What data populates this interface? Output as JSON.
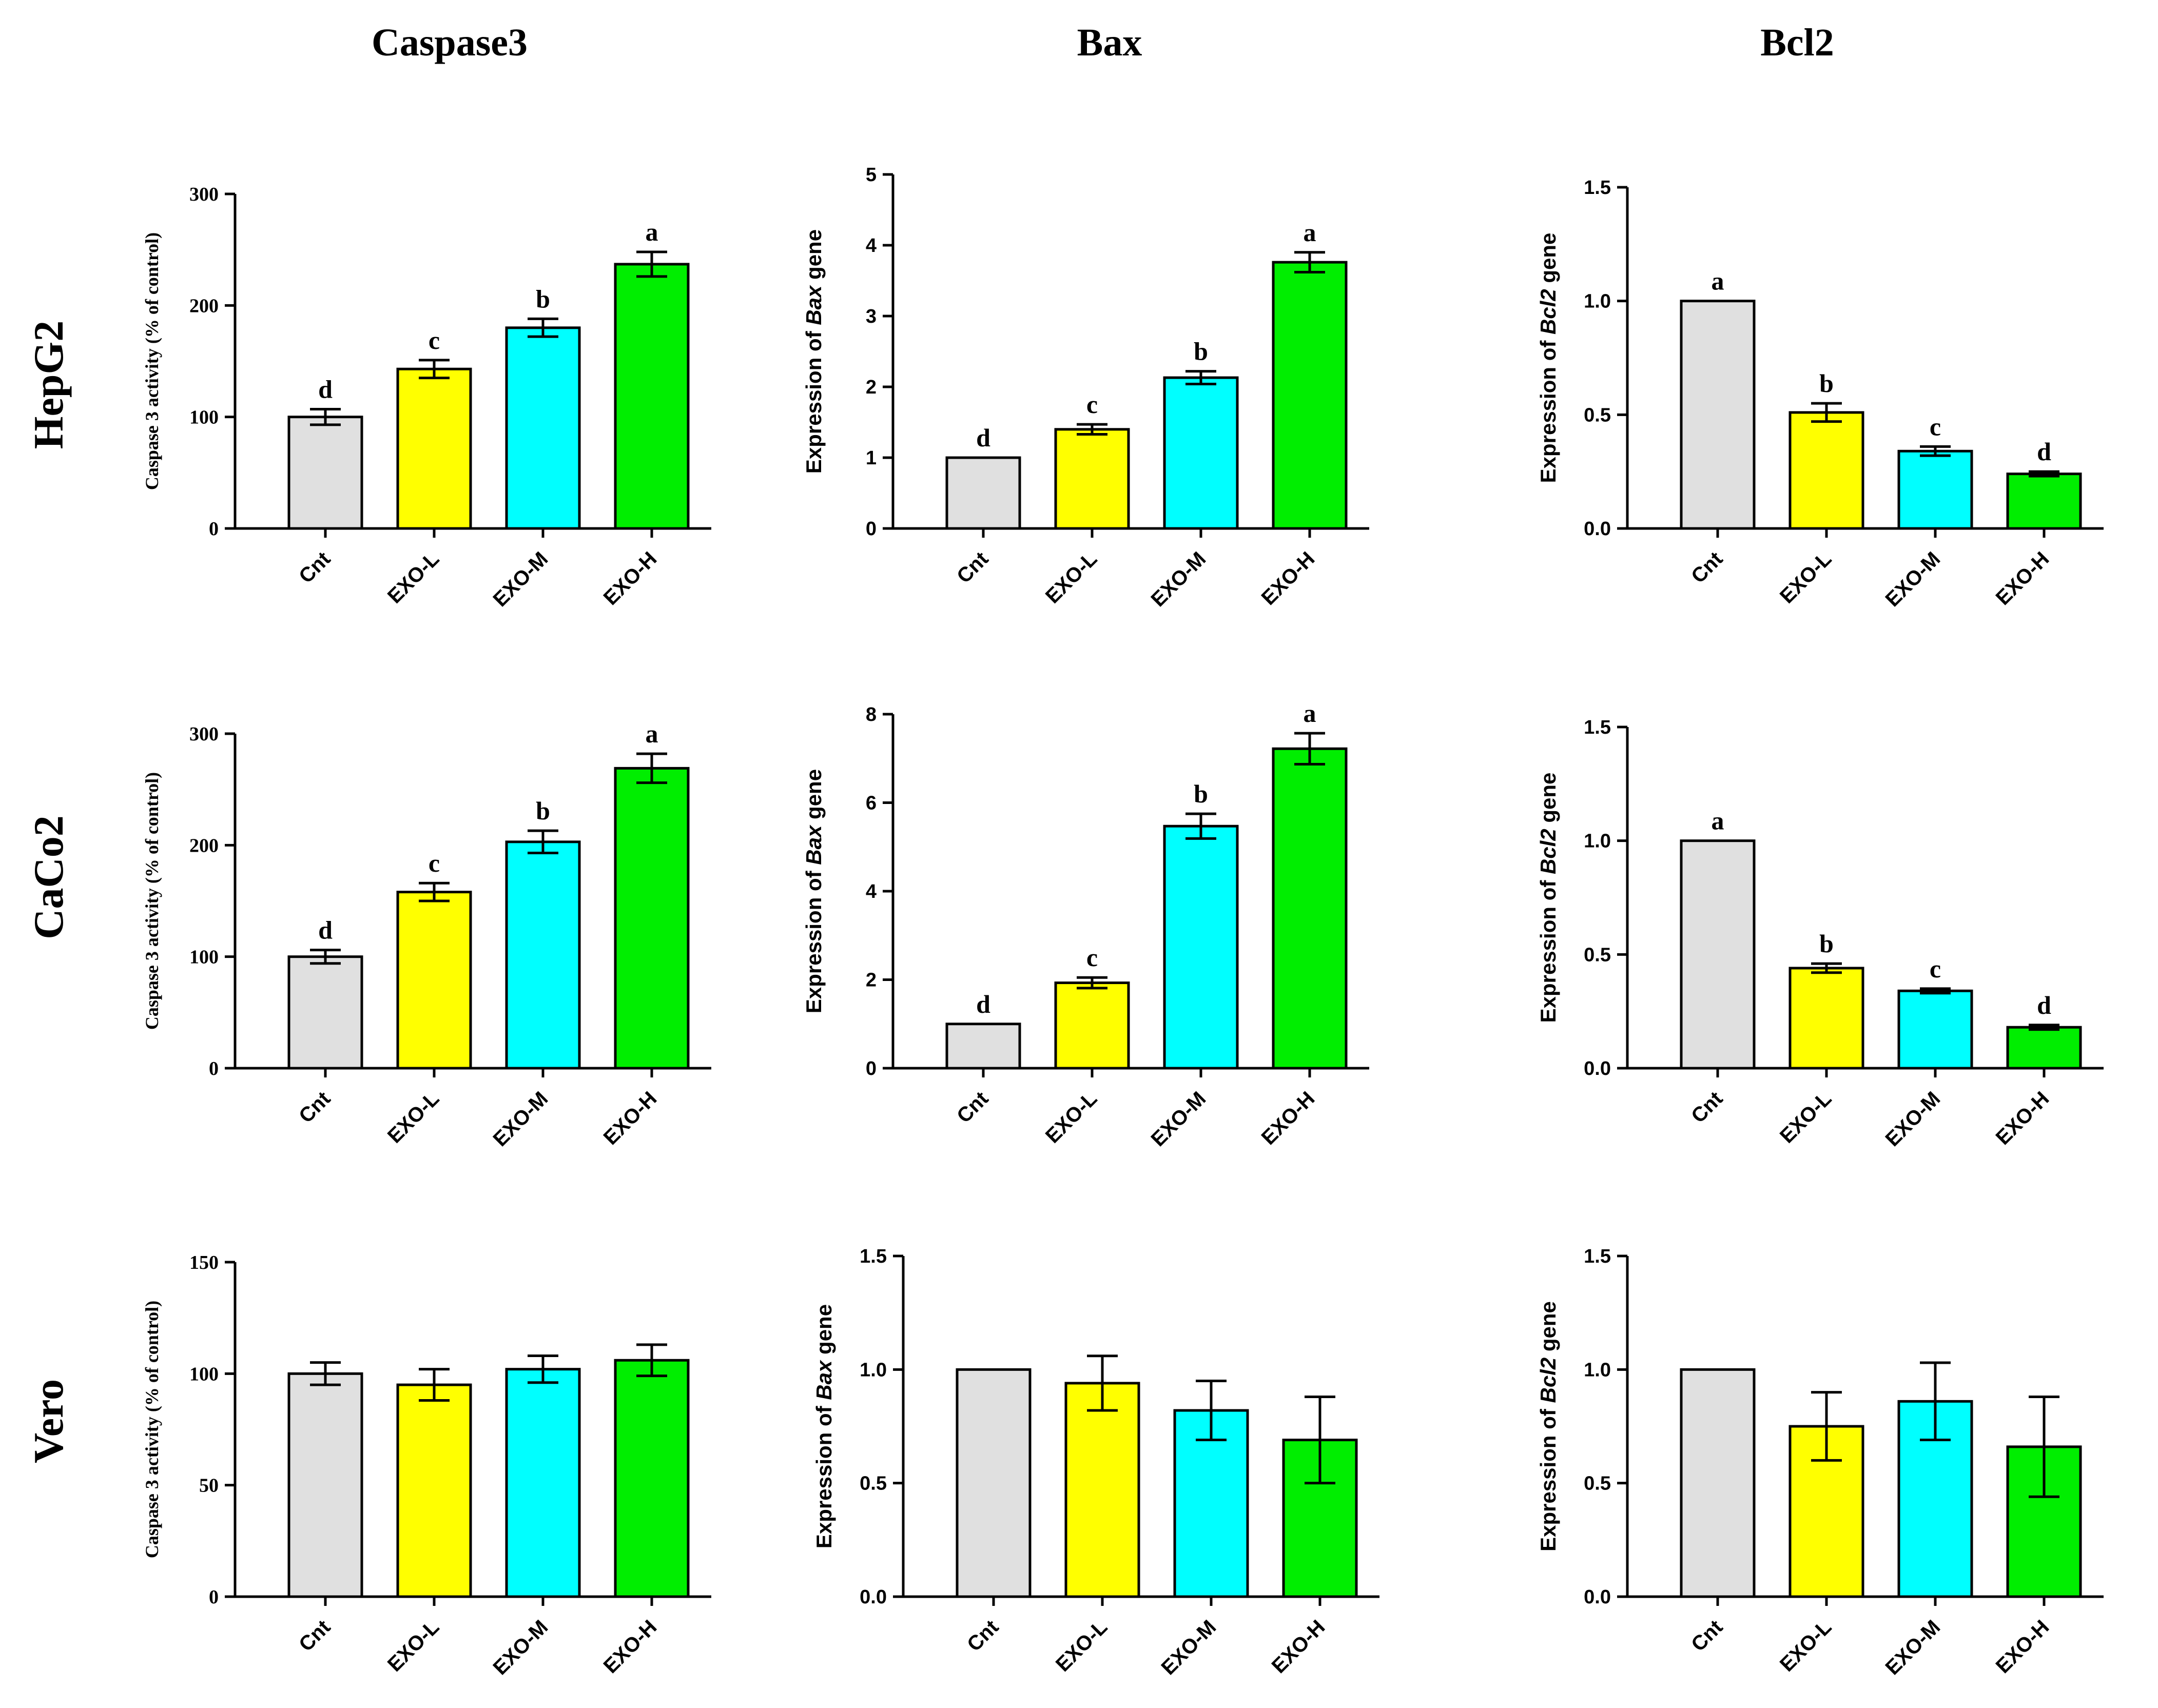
{
  "columns": [
    "Caspase3",
    "Bax",
    "Bcl2"
  ],
  "rows": [
    "HepG2",
    "CaCo2",
    "Vero"
  ],
  "colors": {
    "Cnt": "#e0e0e0",
    "EXO-L": "#ffff00",
    "EXO-M": "#00ffff",
    "EXO-H": "#00ee00",
    "axis": "#000000"
  },
  "chart_data": [
    {
      "type": "bar",
      "row": "HepG2",
      "column": "Caspase3",
      "style": "serif",
      "categories": [
        "Cnt",
        "EXO-L",
        "EXO-M",
        "EXO-H"
      ],
      "values": [
        100,
        143,
        180,
        237
      ],
      "errors": [
        7,
        8,
        8,
        11
      ],
      "significance": [
        "d",
        "c",
        "b",
        "a"
      ],
      "ylabel": "Caspase 3 activity (% of control)",
      "ylim": [
        0,
        300
      ],
      "yticks": [
        0,
        100,
        200,
        300
      ],
      "ytick_labels": [
        "0",
        "100",
        "200",
        "300"
      ]
    },
    {
      "type": "bar",
      "row": "HepG2",
      "column": "Bax",
      "style": "sans",
      "categories": [
        "Cnt",
        "EXO-L",
        "EXO-M",
        "EXO-H"
      ],
      "values": [
        1.0,
        1.4,
        2.13,
        3.76
      ],
      "errors": [
        0,
        0.07,
        0.09,
        0.14
      ],
      "significance": [
        "d",
        "c",
        "b",
        "a"
      ],
      "ylabel": {
        "before": "Expression of ",
        "italic": "Bax",
        "after": " gene"
      },
      "ylim": [
        0,
        5
      ],
      "yticks": [
        0,
        1,
        2,
        3,
        4,
        5
      ],
      "ytick_labels": [
        "0",
        "1",
        "2",
        "3",
        "4",
        "5"
      ]
    },
    {
      "type": "bar",
      "row": "HepG2",
      "column": "Bcl2",
      "style": "sans",
      "categories": [
        "Cnt",
        "EXO-L",
        "EXO-M",
        "EXO-H"
      ],
      "values": [
        1.0,
        0.51,
        0.34,
        0.24
      ],
      "errors": [
        0,
        0.04,
        0.02,
        0.01
      ],
      "significance": [
        "a",
        "b",
        "c",
        "d"
      ],
      "ylabel": {
        "before": "Expression of ",
        "italic": "Bcl2",
        "after": " gene"
      },
      "ylim": [
        0,
        1.5
      ],
      "yticks": [
        0,
        0.5,
        1.0,
        1.5
      ],
      "ytick_labels": [
        "0.0",
        "0.5",
        "1.0",
        "1.5"
      ]
    },
    {
      "type": "bar",
      "row": "CaCo2",
      "column": "Caspase3",
      "style": "serif",
      "categories": [
        "Cnt",
        "EXO-L",
        "EXO-M",
        "EXO-H"
      ],
      "values": [
        100,
        158,
        203,
        269
      ],
      "errors": [
        6,
        8,
        10,
        13
      ],
      "significance": [
        "d",
        "c",
        "b",
        "a"
      ],
      "ylabel": "Caspase 3 activity (% of control)",
      "ylim": [
        0,
        300
      ],
      "yticks": [
        0,
        100,
        200,
        300
      ],
      "ytick_labels": [
        "0",
        "100",
        "200",
        "300"
      ]
    },
    {
      "type": "bar",
      "row": "CaCo2",
      "column": "Bax",
      "style": "sans",
      "categories": [
        "Cnt",
        "EXO-L",
        "EXO-M",
        "EXO-H"
      ],
      "values": [
        1.0,
        1.93,
        5.47,
        7.22
      ],
      "errors": [
        0,
        0.12,
        0.28,
        0.35
      ],
      "significance": [
        "d",
        "c",
        "b",
        "a"
      ],
      "ylabel": {
        "before": "Expression of ",
        "italic": "Bax",
        "after": " gene"
      },
      "ylim": [
        0,
        8
      ],
      "yticks": [
        0,
        2,
        4,
        6,
        8
      ],
      "ytick_labels": [
        "0",
        "2",
        "4",
        "6",
        "8"
      ]
    },
    {
      "type": "bar",
      "row": "CaCo2",
      "column": "Bcl2",
      "style": "sans",
      "categories": [
        "Cnt",
        "EXO-L",
        "EXO-M",
        "EXO-H"
      ],
      "values": [
        1.0,
        0.44,
        0.34,
        0.18
      ],
      "errors": [
        0,
        0.02,
        0.01,
        0.01
      ],
      "significance": [
        "a",
        "b",
        "c",
        "d"
      ],
      "ylabel": {
        "before": "Expression of ",
        "italic": "Bcl2",
        "after": " gene"
      },
      "ylim": [
        0,
        1.5
      ],
      "yticks": [
        0,
        0.5,
        1.0,
        1.5
      ],
      "ytick_labels": [
        "0.0",
        "0.5",
        "1.0",
        "1.5"
      ]
    },
    {
      "type": "bar",
      "row": "Vero",
      "column": "Caspase3",
      "style": "serif",
      "categories": [
        "Cnt",
        "EXO-L",
        "EXO-M",
        "EXO-H"
      ],
      "values": [
        100,
        95,
        102,
        106
      ],
      "errors": [
        5,
        7,
        6,
        7
      ],
      "significance": [
        "",
        "",
        "",
        ""
      ],
      "ylabel": "Caspase 3 activity (% of control)",
      "ylim": [
        0,
        150
      ],
      "yticks": [
        0,
        50,
        100,
        150
      ],
      "ytick_labels": [
        "0",
        "50",
        "100",
        "150"
      ]
    },
    {
      "type": "bar",
      "row": "Vero",
      "column": "Bax",
      "style": "sans",
      "categories": [
        "Cnt",
        "EXO-L",
        "EXO-M",
        "EXO-H"
      ],
      "values": [
        1.0,
        0.94,
        0.82,
        0.69
      ],
      "errors": [
        0,
        0.12,
        0.13,
        0.19
      ],
      "significance": [
        "",
        "",
        "",
        ""
      ],
      "ylabel": {
        "before": "Expression of ",
        "italic": "Bax",
        "after": " gene"
      },
      "ylim": [
        0,
        1.5
      ],
      "yticks": [
        0,
        0.5,
        1.0,
        1.5
      ],
      "ytick_labels": [
        "0.0",
        "0.5",
        "1.0",
        "1.5"
      ]
    },
    {
      "type": "bar",
      "row": "Vero",
      "column": "Bcl2",
      "style": "sans",
      "categories": [
        "Cnt",
        "EXO-L",
        "EXO-M",
        "EXO-H"
      ],
      "values": [
        1.0,
        0.75,
        0.86,
        0.66
      ],
      "errors": [
        0,
        0.15,
        0.17,
        0.22
      ],
      "significance": [
        "",
        "",
        "",
        ""
      ],
      "ylabel": {
        "before": "Expression of ",
        "italic": "Bcl2",
        "after": " gene"
      },
      "ylim": [
        0,
        1.5
      ],
      "yticks": [
        0,
        0.5,
        1.0,
        1.5
      ],
      "ytick_labels": [
        "0.0",
        "0.5",
        "1.0",
        "1.5"
      ]
    }
  ]
}
